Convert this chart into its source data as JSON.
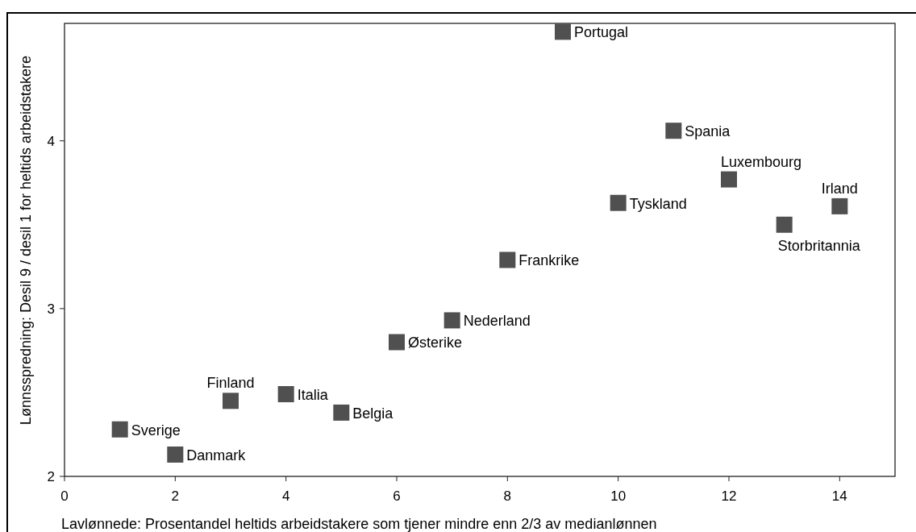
{
  "chart_data": {
    "type": "scatter",
    "xlabel": "Lavlønnede: Prosentandel heltids arbeidstakere som tjener mindre enn 2/3 av medianlønnen",
    "ylabel": "Lønnsspredning: Desil 9 / desil 1 for heltids arbeidstakere",
    "xlim": [
      0,
      15
    ],
    "xticks": [
      0,
      2,
      4,
      6,
      8,
      10,
      12,
      14
    ],
    "ylim": [
      2,
      4.7
    ],
    "yticks": [
      2,
      3,
      4
    ],
    "grid": false,
    "marker": "square",
    "series": [
      {
        "color": "#505050",
        "x": [
          1,
          2,
          3,
          4,
          5,
          6,
          7,
          8,
          9,
          10,
          11,
          12,
          13,
          14
        ],
        "values": [
          2.28,
          2.13,
          2.45,
          2.49,
          2.38,
          2.8,
          2.93,
          3.29,
          4.65,
          3.63,
          4.06,
          3.77,
          3.5,
          3.61
        ]
      }
    ],
    "annotations": [
      {
        "text": "Sverige",
        "x": 1,
        "y": 2.28
      },
      {
        "text": "Danmark",
        "x": 2,
        "y": 2.13
      },
      {
        "text": "Finland",
        "x": 3,
        "y": 2.45
      },
      {
        "text": "Italia",
        "x": 4,
        "y": 2.49
      },
      {
        "text": "Belgia",
        "x": 5,
        "y": 2.38
      },
      {
        "text": "Østerike",
        "x": 6,
        "y": 2.8
      },
      {
        "text": "Nederland",
        "x": 7,
        "y": 2.93
      },
      {
        "text": "Frankrike",
        "x": 8,
        "y": 3.29
      },
      {
        "text": "Portugal",
        "x": 9,
        "y": 4.65
      },
      {
        "text": "Tyskland",
        "x": 10,
        "y": 3.63
      },
      {
        "text": "Spania",
        "x": 11,
        "y": 4.06
      },
      {
        "text": "Luxembourg",
        "x": 12,
        "y": 3.77
      },
      {
        "text": "Storbritannia",
        "x": 13,
        "y": 3.5
      },
      {
        "text": "Irland",
        "x": 14,
        "y": 3.61
      }
    ]
  }
}
